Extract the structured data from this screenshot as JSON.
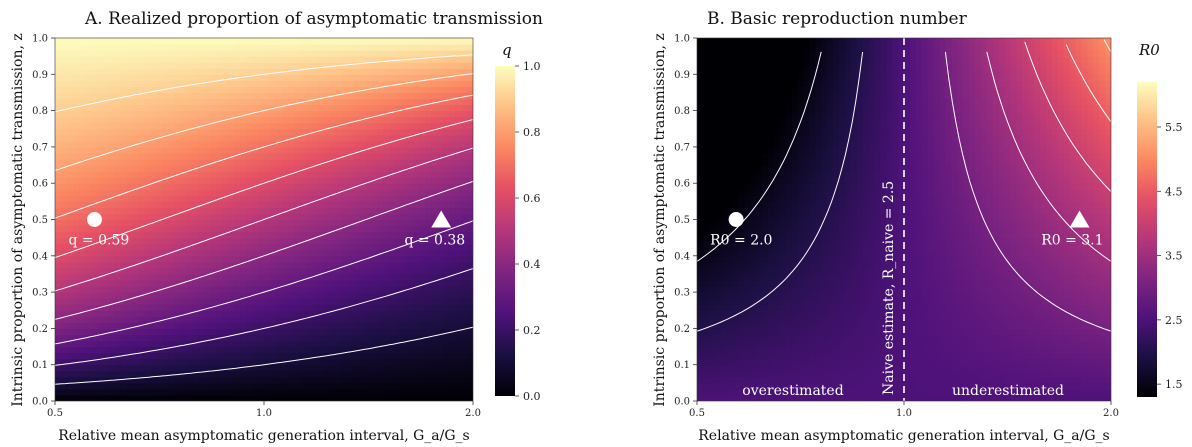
{
  "shared": {
    "ylabel": "Intrinsic proportion of asymptomatic transmission, z",
    "xlabel": "Relative mean asymptomatic generation interval, G_a/G_s"
  },
  "chart_data": [
    {
      "type": "heatmap",
      "title": "A. Realized proportion of asymptomatic transmission",
      "xlabel": "Relative mean asymptomatic generation interval, G_a/G_s",
      "ylabel": "Intrinsic proportion of asymptomatic transmission, z",
      "x_scale": "log",
      "xlim": [
        0.5,
        2.0
      ],
      "ylim": [
        0.0,
        1.0
      ],
      "x_ticks": [
        "0.5",
        "1.0",
        "2.0"
      ],
      "y_ticks": [
        "0.0",
        "0.1",
        "0.2",
        "0.3",
        "0.4",
        "0.5",
        "0.6",
        "0.7",
        "0.8",
        "0.9",
        "1.0"
      ],
      "colorbar": {
        "label": "q",
        "colormap": "magma",
        "range": [
          0.0,
          1.0
        ],
        "ticks": [
          "0.0",
          "0.2",
          "0.4",
          "0.6",
          "0.8",
          "1.0"
        ]
      },
      "contour_levels": [
        0.1,
        0.2,
        0.3,
        0.4,
        0.5,
        0.6,
        0.7,
        0.8,
        0.9
      ],
      "markers": [
        {
          "shape": "circle",
          "x": 0.57,
          "y": 0.5,
          "label": "q = 0.59",
          "value": 0.59
        },
        {
          "shape": "triangle",
          "x": 1.8,
          "y": 0.5,
          "label": "q = 0.38",
          "value": 0.38
        }
      ]
    },
    {
      "type": "heatmap",
      "title": "B. Basic reproduction number",
      "xlabel": "Relative mean asymptomatic generation interval, G_a/G_s",
      "ylabel": "Intrinsic proportion of asymptomatic transmission, z",
      "x_scale": "log",
      "xlim": [
        0.5,
        2.0
      ],
      "ylim": [
        0.0,
        1.0
      ],
      "x_ticks": [
        "0.5",
        "1.0",
        "2.0"
      ],
      "y_ticks": [
        "0.0",
        "0.1",
        "0.2",
        "0.3",
        "0.4",
        "0.5",
        "0.6",
        "0.7",
        "0.8",
        "0.9",
        "1.0"
      ],
      "colorbar": {
        "label": "R0",
        "colormap": "magma",
        "range": [
          1.3,
          6.2
        ],
        "ticks": [
          "1.5",
          "2.5",
          "3.5",
          "4.5",
          "5.5"
        ]
      },
      "contour_levels": [
        1.5,
        2.0,
        3.0,
        3.5,
        4.0,
        4.5,
        5.0,
        5.5,
        6.0
      ],
      "naive_estimate": {
        "x": 1.0,
        "label": "Naive estimate, R_naive = 2.5",
        "value": 2.5
      },
      "region_labels": [
        "overestimated",
        "underestimated"
      ],
      "markers": [
        {
          "shape": "circle",
          "x": 0.57,
          "y": 0.5,
          "label": "R0 = 2.0",
          "value": 2.0
        },
        {
          "shape": "triangle",
          "x": 1.8,
          "y": 0.5,
          "label": "R0 = 3.1",
          "value": 3.1
        }
      ]
    }
  ]
}
